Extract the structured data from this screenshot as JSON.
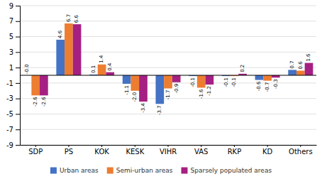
{
  "chart_data": {
    "type": "bar",
    "categories": [
      "SDP",
      "PS",
      "KOK",
      "KESK",
      "VIHR",
      "VAS",
      "RKP",
      "KD",
      "Others"
    ],
    "series": [
      {
        "name": "Urban areas",
        "color": "#4472c4",
        "values": [
          -0.0,
          4.6,
          0.1,
          -1.1,
          -3.7,
          -0.1,
          -0.1,
          -0.6,
          0.7
        ],
        "value_labels": [
          "-0.0",
          "4.6",
          "0.1",
          "-1.1",
          "-3.7",
          "-0.1",
          "-0.1",
          "-0.6",
          "0.7"
        ]
      },
      {
        "name": "Semi-urban areas",
        "color": "#ed7d31",
        "values": [
          -2.6,
          6.7,
          1.4,
          -2.0,
          -1.7,
          -1.6,
          -0.1,
          -0.7,
          0.6
        ],
        "value_labels": [
          "-2.6",
          "6.7",
          "1.4",
          "-2.0",
          "-1.7",
          "-1.6",
          "-0.1",
          "-0.7",
          "0.6"
        ]
      },
      {
        "name": "Sparsely populated areas",
        "color": "#a52082",
        "values": [
          -2.6,
          6.6,
          0.4,
          -3.4,
          -0.9,
          -1.2,
          0.2,
          -0.3,
          1.6
        ],
        "value_labels": [
          "-2.6",
          "6.6",
          "0.4",
          "-3.4",
          "-0.9",
          "-1.2",
          "0.2",
          "-0.3",
          "1.6"
        ]
      }
    ],
    "ylim": [
      -9,
      9
    ],
    "yticks": [
      -9,
      -7,
      -5,
      -3,
      -1,
      1,
      3,
      5,
      7,
      9
    ],
    "grid": true,
    "data_labels": true,
    "legend": "bottom"
  }
}
